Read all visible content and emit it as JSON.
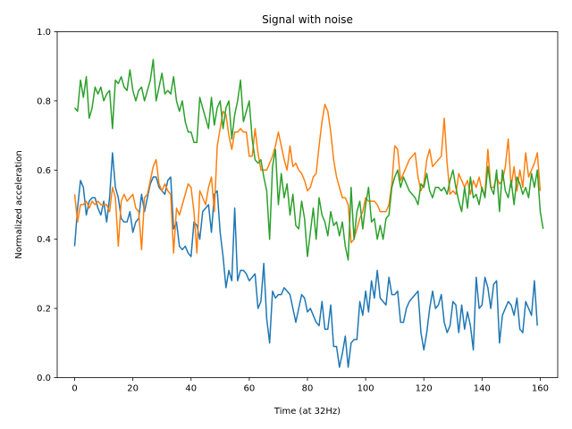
{
  "chart_data": {
    "type": "line",
    "title": "Signal with noise",
    "xlabel": "Time (at 32Hz)",
    "ylabel": "Normalized acceleration",
    "xlim": [
      -6,
      166
    ],
    "ylim": [
      0.0,
      1.0
    ],
    "xticks": [
      0,
      20,
      40,
      60,
      80,
      100,
      120,
      140,
      160
    ],
    "yticks": [
      0.0,
      0.2,
      0.4,
      0.6,
      0.8,
      1.0
    ],
    "xtick_labels": [
      "0",
      "20",
      "40",
      "60",
      "80",
      "100",
      "120",
      "140",
      "160"
    ],
    "ytick_labels": [
      "0.0",
      "0.2",
      "0.4",
      "0.6",
      "0.8",
      "1.0"
    ],
    "grid": false,
    "legend": "none",
    "series": [
      {
        "color": "#1f77b4",
        "values": [
          0.38,
          0.49,
          0.57,
          0.55,
          0.47,
          0.51,
          0.52,
          0.52,
          0.49,
          0.47,
          0.51,
          0.45,
          0.52,
          0.65,
          0.55,
          0.52,
          0.46,
          0.45,
          0.45,
          0.48,
          0.42,
          0.45,
          0.46,
          0.53,
          0.48,
          0.52,
          0.56,
          0.58,
          0.58,
          0.55,
          0.54,
          0.53,
          0.57,
          0.58,
          0.43,
          0.45,
          0.38,
          0.37,
          0.38,
          0.36,
          0.35,
          0.45,
          0.44,
          0.4,
          0.48,
          0.49,
          0.5,
          0.42,
          0.53,
          0.54,
          0.42,
          0.35,
          0.26,
          0.31,
          0.28,
          0.49,
          0.28,
          0.31,
          0.31,
          0.3,
          0.28,
          0.29,
          0.3,
          0.2,
          0.22,
          0.33,
          0.17,
          0.1,
          0.25,
          0.23,
          0.24,
          0.24,
          0.26,
          0.25,
          0.24,
          0.2,
          0.16,
          0.2,
          0.24,
          0.23,
          0.19,
          0.2,
          0.18,
          0.16,
          0.15,
          0.22,
          0.14,
          0.14,
          0.21,
          0.09,
          0.09,
          0.03,
          0.07,
          0.12,
          0.03,
          0.1,
          0.11,
          0.11,
          0.22,
          0.18,
          0.25,
          0.19,
          0.28,
          0.23,
          0.31,
          0.23,
          0.22,
          0.21,
          0.29,
          0.24,
          0.24,
          0.25,
          0.16,
          0.16,
          0.2,
          0.22,
          0.23,
          0.24,
          0.25,
          0.13,
          0.08,
          0.13,
          0.2,
          0.25,
          0.2,
          0.21,
          0.24,
          0.16,
          0.13,
          0.15,
          0.22,
          0.21,
          0.13,
          0.21,
          0.14,
          0.19,
          0.15,
          0.08,
          0.29,
          0.2,
          0.21,
          0.29,
          0.26,
          0.2,
          0.27,
          0.28,
          0.1,
          0.18,
          0.2,
          0.22,
          0.21,
          0.18,
          0.23,
          0.14,
          0.13,
          0.22,
          0.2,
          0.18,
          0.28,
          0.15
        ]
      },
      {
        "color": "#ff7f0e",
        "values": [
          0.53,
          0.45,
          0.5,
          0.5,
          0.51,
          0.49,
          0.51,
          0.5,
          0.51,
          0.5,
          0.5,
          0.5,
          0.48,
          0.55,
          0.52,
          0.38,
          0.51,
          0.53,
          0.51,
          0.52,
          0.53,
          0.49,
          0.48,
          0.37,
          0.52,
          0.53,
          0.57,
          0.61,
          0.63,
          0.56,
          0.54,
          0.56,
          0.54,
          0.53,
          0.36,
          0.49,
          0.47,
          0.5,
          0.53,
          0.56,
          0.55,
          0.48,
          0.36,
          0.54,
          0.52,
          0.5,
          0.55,
          0.58,
          0.48,
          0.67,
          0.72,
          0.77,
          0.76,
          0.7,
          0.66,
          0.71,
          0.71,
          0.72,
          0.71,
          0.71,
          0.64,
          0.64,
          0.72,
          0.65,
          0.6,
          0.6,
          0.6,
          0.62,
          0.64,
          0.67,
          0.71,
          0.67,
          0.63,
          0.6,
          0.67,
          0.61,
          0.62,
          0.6,
          0.59,
          0.57,
          0.54,
          0.55,
          0.58,
          0.59,
          0.67,
          0.74,
          0.79,
          0.77,
          0.71,
          0.63,
          0.58,
          0.55,
          0.52,
          0.52,
          0.5,
          0.39,
          0.4,
          0.43,
          0.46,
          0.48,
          0.52,
          0.51,
          0.51,
          0.51,
          0.5,
          0.48,
          0.48,
          0.48,
          0.5,
          0.56,
          0.67,
          0.66,
          0.57,
          0.59,
          0.61,
          0.63,
          0.64,
          0.65,
          0.58,
          0.54,
          0.56,
          0.63,
          0.66,
          0.61,
          0.62,
          0.63,
          0.64,
          0.75,
          0.62,
          0.53,
          0.54,
          0.53,
          0.59,
          0.57,
          0.55,
          0.57,
          0.53,
          0.57,
          0.55,
          0.58,
          0.54,
          0.53,
          0.66,
          0.55,
          0.55,
          0.58,
          0.56,
          0.57,
          0.61,
          0.69,
          0.55,
          0.61,
          0.54,
          0.6,
          0.55,
          0.65,
          0.58,
          0.6,
          0.62,
          0.65,
          0.54
        ]
      },
      {
        "color": "#2ca02c",
        "values": [
          0.78,
          0.77,
          0.86,
          0.81,
          0.87,
          0.75,
          0.78,
          0.84,
          0.82,
          0.84,
          0.8,
          0.82,
          0.83,
          0.72,
          0.86,
          0.85,
          0.87,
          0.84,
          0.83,
          0.89,
          0.83,
          0.8,
          0.83,
          0.84,
          0.8,
          0.83,
          0.86,
          0.92,
          0.8,
          0.84,
          0.88,
          0.82,
          0.83,
          0.82,
          0.87,
          0.8,
          0.77,
          0.8,
          0.74,
          0.71,
          0.71,
          0.68,
          0.68,
          0.81,
          0.78,
          0.75,
          0.72,
          0.81,
          0.73,
          0.78,
          0.8,
          0.72,
          0.78,
          0.8,
          0.69,
          0.76,
          0.8,
          0.86,
          0.74,
          0.77,
          0.8,
          0.69,
          0.63,
          0.62,
          0.63,
          0.58,
          0.54,
          0.4,
          0.61,
          0.66,
          0.5,
          0.59,
          0.52,
          0.56,
          0.47,
          0.53,
          0.44,
          0.43,
          0.51,
          0.46,
          0.35,
          0.42,
          0.49,
          0.4,
          0.52,
          0.47,
          0.45,
          0.41,
          0.48,
          0.44,
          0.45,
          0.41,
          0.45,
          0.38,
          0.34,
          0.55,
          0.4,
          0.48,
          0.51,
          0.43,
          0.5,
          0.55,
          0.45,
          0.46,
          0.4,
          0.44,
          0.4,
          0.46,
          0.47,
          0.55,
          0.58,
          0.6,
          0.55,
          0.58,
          0.56,
          0.54,
          0.53,
          0.52,
          0.5,
          0.56,
          0.55,
          0.59,
          0.54,
          0.52,
          0.55,
          0.55,
          0.54,
          0.55,
          0.53,
          0.57,
          0.6,
          0.55,
          0.51,
          0.48,
          0.55,
          0.49,
          0.58,
          0.52,
          0.53,
          0.5,
          0.55,
          0.52,
          0.61,
          0.55,
          0.53,
          0.6,
          0.48,
          0.6,
          0.54,
          0.52,
          0.57,
          0.5,
          0.58,
          0.56,
          0.53,
          0.55,
          0.52,
          0.59,
          0.55,
          0.6,
          0.48,
          0.43
        ]
      }
    ]
  }
}
